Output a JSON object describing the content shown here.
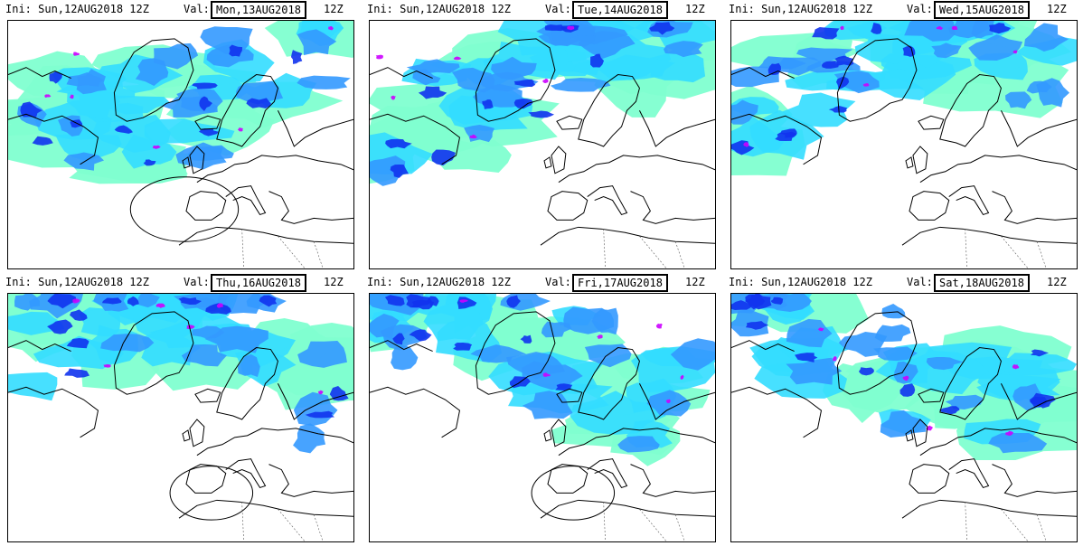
{
  "panels": [
    {
      "init": "Ini:  Sun,12AUG2018  12Z",
      "valid_label": "Val:",
      "valid_date": "Mon,13AUG2018",
      "valid_hour": "12Z",
      "circle": true
    },
    {
      "init": "Ini:  Sun,12AUG2018  12Z",
      "valid_label": "Val:",
      "valid_date": "Tue,14AUG2018",
      "valid_hour": "12Z",
      "circle": false
    },
    {
      "init": "Ini:  Sun,12AUG2018  12Z",
      "valid_label": "Val:",
      "valid_date": "Wed,15AUG2018",
      "valid_hour": "12Z",
      "circle": false
    },
    {
      "init": "Ini:  Sun,12AUG2018  12Z",
      "valid_label": "Val:",
      "valid_date": "Thu,16AUG2018",
      "valid_hour": "12Z",
      "circle": true
    },
    {
      "init": "Ini:  Sun,12AUG2018  12Z",
      "valid_label": "Val:",
      "valid_date": "Fri,17AUG2018",
      "valid_hour": "12Z",
      "circle": true
    },
    {
      "init": "Ini:  Sun,12AUG2018  12Z",
      "valid_label": "Val:",
      "valid_date": "Sat,18AUG2018",
      "valid_hour": "12Z",
      "circle": false
    }
  ],
  "colors": {
    "light": "#7fffd0",
    "cyan": "#33ddff",
    "mid": "#3399ff",
    "deep": "#1133ee",
    "peak": "#cc00ff",
    "coast": "#000000"
  }
}
